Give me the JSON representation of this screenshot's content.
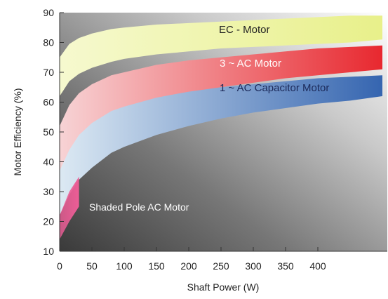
{
  "chart_data": {
    "type": "area",
    "title": "",
    "xlabel": "Shaft Power (W)",
    "ylabel": "Motor Efficiency (%)",
    "xlim": [
      0,
      500
    ],
    "ylim": [
      10,
      90
    ],
    "x_ticks": [
      0,
      50,
      100,
      150,
      200,
      250,
      300,
      350,
      400
    ],
    "y_ticks": [
      10,
      20,
      30,
      40,
      50,
      60,
      70,
      80,
      90
    ],
    "grid": false,
    "series": [
      {
        "name": "EC - Motor",
        "color": "#e8f08a",
        "color_light": "#f6f9cf",
        "x": [
          0,
          15,
          30,
          50,
          80,
          100,
          150,
          200,
          250,
          300,
          350,
          400,
          450,
          500
        ],
        "upper": [
          75,
          79.5,
          81.5,
          83,
          84.5,
          85,
          86,
          86.5,
          87,
          87.5,
          88,
          88.5,
          89,
          89
        ],
        "lower": [
          62,
          67,
          69.5,
          71.5,
          73.5,
          74.5,
          76,
          77,
          78,
          78.5,
          79,
          79.5,
          80,
          81
        ]
      },
      {
        "name": "3 ~ AC Motor",
        "color": "#e8282f",
        "color_light": "#f7d3d5",
        "x": [
          0,
          15,
          30,
          50,
          80,
          100,
          150,
          200,
          250,
          300,
          350,
          400,
          450,
          500
        ],
        "upper": [
          52,
          59,
          63,
          66,
          69,
          70,
          72.5,
          74,
          75,
          76,
          77,
          78,
          78.5,
          79
        ],
        "lower": [
          35,
          43,
          48,
          52,
          56,
          57.5,
          61,
          63,
          65,
          66.5,
          68,
          69,
          70,
          71
        ]
      },
      {
        "name": "1 ~ AC Capacitor Motor",
        "color": "#3565b0",
        "color_light": "#dce9f3",
        "x": [
          0,
          15,
          30,
          50,
          80,
          100,
          150,
          200,
          250,
          300,
          350,
          400,
          450,
          500
        ],
        "upper": [
          37,
          44,
          49,
          53,
          57,
          58.5,
          61.5,
          63.5,
          65,
          66,
          67,
          68,
          68.5,
          69
        ],
        "lower": [
          22,
          29,
          34,
          38,
          43,
          45,
          49,
          52,
          54.5,
          56.5,
          58,
          59.5,
          60.5,
          62
        ]
      },
      {
        "name": "Shaded Pole AC Motor",
        "color": "#ec5d96",
        "x": [
          0,
          15,
          30
        ],
        "upper": [
          22,
          30,
          35
        ],
        "lower": [
          14,
          20,
          25
        ]
      }
    ]
  }
}
